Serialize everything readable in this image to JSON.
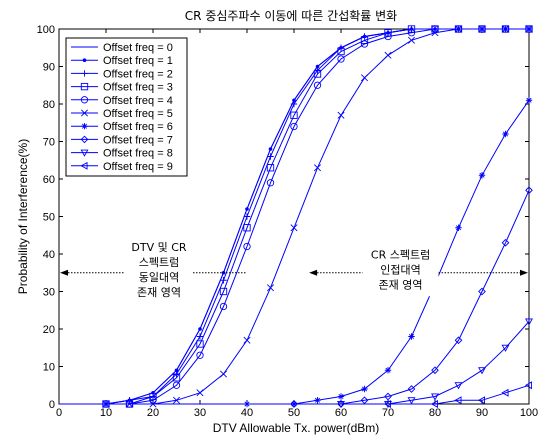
{
  "chart_data": {
    "type": "line",
    "title": "CR 중심주파수 이동에 따른 간섭확률 변화",
    "xlabel": "DTV Allowable Tx. power(dBm)",
    "ylabel": "Probability of Interference(%)",
    "xlim": [
      0,
      100
    ],
    "ylim": [
      0,
      100
    ],
    "xticks": [
      "0",
      "10",
      "20",
      "30",
      "40",
      "50",
      "60",
      "70",
      "80",
      "90",
      "100"
    ],
    "yticks": [
      "0",
      "10",
      "20",
      "30",
      "40",
      "50",
      "60",
      "70",
      "80",
      "90",
      "100"
    ],
    "grid": false,
    "legend_position": "top-left",
    "color": "#0000ff",
    "series": [
      {
        "name": "Offset freq = 0",
        "marker": "none",
        "x": [
          0,
          10,
          15,
          20,
          25,
          30,
          35,
          40,
          45,
          50,
          55,
          60,
          65,
          70,
          75,
          80,
          85,
          90,
          95,
          100
        ],
        "y": [
          0,
          0,
          1,
          3,
          9,
          20,
          35,
          52,
          68,
          81,
          90,
          95,
          98,
          99,
          100,
          100,
          100,
          100,
          100,
          100
        ]
      },
      {
        "name": "Offset freq = 1",
        "marker": "dot",
        "x": [
          0,
          10,
          15,
          20,
          25,
          30,
          35,
          40,
          45,
          50,
          55,
          60,
          65,
          70,
          75,
          80,
          85,
          90,
          95,
          100
        ],
        "y": [
          0,
          0,
          1,
          3,
          9,
          20,
          35,
          52,
          68,
          81,
          90,
          95,
          98,
          99,
          100,
          100,
          100,
          100,
          100,
          100
        ]
      },
      {
        "name": "Offset freq = 2",
        "marker": "plus",
        "x": [
          0,
          10,
          15,
          20,
          25,
          30,
          35,
          40,
          45,
          50,
          55,
          60,
          65,
          70,
          75,
          80,
          85,
          90,
          95,
          100
        ],
        "y": [
          0,
          0,
          1,
          2,
          8,
          18,
          33,
          50,
          66,
          80,
          89,
          95,
          98,
          99,
          100,
          100,
          100,
          100,
          100,
          100
        ]
      },
      {
        "name": "Offset freq = 3",
        "marker": "square",
        "x": [
          0,
          10,
          15,
          20,
          25,
          30,
          35,
          40,
          45,
          50,
          55,
          60,
          65,
          70,
          75,
          80,
          85,
          90,
          95,
          100
        ],
        "y": [
          0,
          0,
          0,
          2,
          7,
          16,
          30,
          47,
          63,
          77,
          88,
          94,
          97,
          99,
          100,
          100,
          100,
          100,
          100,
          100
        ]
      },
      {
        "name": "Offset freq = 4",
        "marker": "circle",
        "x": [
          0,
          10,
          15,
          20,
          25,
          30,
          35,
          40,
          45,
          50,
          55,
          60,
          65,
          70,
          75,
          80,
          85,
          90,
          95,
          100
        ],
        "y": [
          0,
          0,
          0,
          1,
          5,
          13,
          26,
          42,
          59,
          74,
          85,
          92,
          96,
          98,
          99,
          100,
          100,
          100,
          100,
          100
        ]
      },
      {
        "name": "Offset freq = 5",
        "marker": "star",
        "x": [
          0,
          10,
          15,
          20,
          25,
          30,
          35,
          40,
          45,
          50,
          55,
          60,
          65,
          70,
          75,
          80,
          85,
          90,
          95,
          100
        ],
        "y": [
          0,
          0,
          0,
          0,
          1,
          3,
          8,
          17,
          31,
          47,
          63,
          77,
          87,
          93,
          97,
          99,
          100,
          100,
          100,
          100
        ]
      },
      {
        "name": "Offset freq = 6",
        "marker": "asterisk",
        "x": [
          0,
          40,
          50,
          55,
          60,
          65,
          70,
          75,
          80,
          85,
          90,
          95,
          100
        ],
        "y": [
          0,
          0,
          0,
          1,
          2,
          4,
          9,
          18,
          32,
          47,
          61,
          72,
          81
        ]
      },
      {
        "name": "Offset freq = 7",
        "marker": "diamond",
        "x": [
          0,
          50,
          60,
          65,
          70,
          75,
          80,
          85,
          90,
          95,
          100
        ],
        "y": [
          0,
          0,
          0,
          1,
          2,
          4,
          9,
          17,
          30,
          43,
          57
        ]
      },
      {
        "name": "Offset freq = 8",
        "marker": "triangle-down",
        "x": [
          0,
          60,
          70,
          75,
          80,
          85,
          90,
          95,
          100
        ],
        "y": [
          0,
          0,
          0,
          1,
          2,
          5,
          9,
          15,
          22
        ]
      },
      {
        "name": "Offset freq = 9",
        "marker": "triangle-left",
        "x": [
          0,
          70,
          80,
          85,
          90,
          95,
          100
        ],
        "y": [
          0,
          0,
          0,
          1,
          1,
          3,
          5
        ]
      }
    ],
    "annotations": [
      {
        "lines": [
          "DTV 및 CR",
          "스펙트럼",
          "동일대역",
          "존재 영역"
        ],
        "arrow": "left",
        "arrow_x": [
          0,
          40
        ],
        "y": 35
      },
      {
        "lines": [
          "CR 스펙트럼",
          "인접대역",
          "존재 영역"
        ],
        "arrow": "both",
        "arrow_x": [
          53,
          100
        ],
        "y": 35
      }
    ]
  }
}
